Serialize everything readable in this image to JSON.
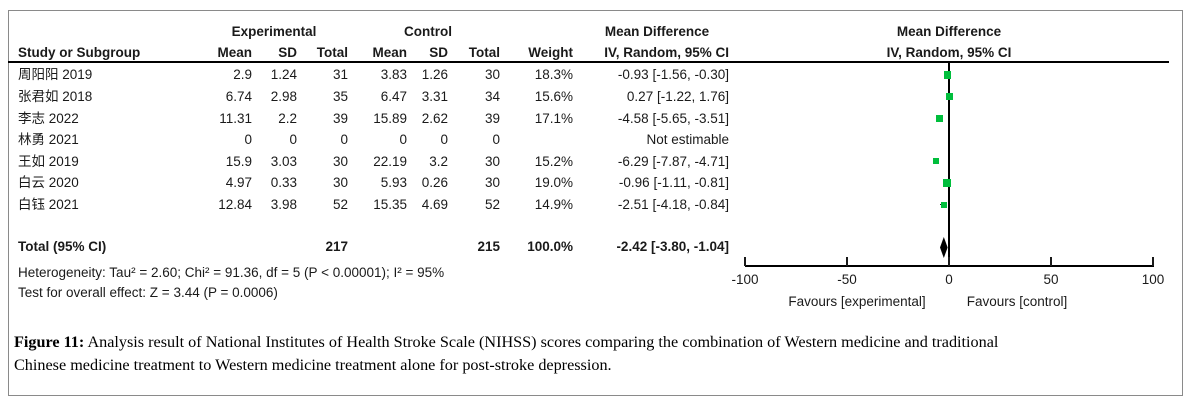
{
  "table": {
    "group_headers": {
      "experimental": "Experimental",
      "control": "Control",
      "mean_difference": "Mean Difference"
    },
    "col_headers": {
      "study": "Study or Subgroup",
      "mean": "Mean",
      "sd": "SD",
      "total": "Total",
      "weight": "Weight",
      "iv": "IV, Random, 95% CI"
    },
    "plot_header": {
      "line1": "Mean Difference",
      "line2": "IV, Random, 95% CI"
    },
    "rows": [
      {
        "study": "周阳阳 2019",
        "mean_e": "2.9",
        "sd_e": "1.24",
        "total_e": "31",
        "mean_c": "3.83",
        "sd_c": "1.26",
        "total_c": "30",
        "weight": "18.3%",
        "ci": "-0.93 [-1.56, -0.30]"
      },
      {
        "study": "张君如 2018",
        "mean_e": "6.74",
        "sd_e": "2.98",
        "total_e": "35",
        "mean_c": "6.47",
        "sd_c": "3.31",
        "total_c": "34",
        "weight": "15.6%",
        "ci": "0.27 [-1.22, 1.76]"
      },
      {
        "study": "李志 2022",
        "mean_e": "11.31",
        "sd_e": "2.2",
        "total_e": "39",
        "mean_c": "15.89",
        "sd_c": "2.62",
        "total_c": "39",
        "weight": "17.1%",
        "ci": "-4.58 [-5.65, -3.51]"
      },
      {
        "study": "林勇 2021",
        "mean_e": "0",
        "sd_e": "0",
        "total_e": "0",
        "mean_c": "0",
        "sd_c": "0",
        "total_c": "0",
        "weight": "",
        "ci": "Not estimable"
      },
      {
        "study": "王如 2019",
        "mean_e": "15.9",
        "sd_e": "3.03",
        "total_e": "30",
        "mean_c": "22.19",
        "sd_c": "3.2",
        "total_c": "30",
        "weight": "15.2%",
        "ci": "-6.29 [-7.87, -4.71]"
      },
      {
        "study": "白云 2020",
        "mean_e": "4.97",
        "sd_e": "0.33",
        "total_e": "30",
        "mean_c": "5.93",
        "sd_c": "0.26",
        "total_c": "30",
        "weight": "19.0%",
        "ci": "-0.96 [-1.11, -0.81]"
      },
      {
        "study": "白钰 2021",
        "mean_e": "12.84",
        "sd_e": "3.98",
        "total_e": "52",
        "mean_c": "15.35",
        "sd_c": "4.69",
        "total_c": "52",
        "weight": "14.9%",
        "ci": "-2.51 [-4.18, -0.84]"
      }
    ],
    "total_row": {
      "label": "Total (95% CI)",
      "total_e": "217",
      "total_c": "215",
      "weight": "100.0%",
      "ci": "-2.42 [-3.80, -1.04]"
    }
  },
  "footer": {
    "heterogeneity": "Heterogeneity: Tau² = 2.60; Chi² = 91.36, df = 5 (P < 0.00001); I² = 95%",
    "overall_effect": "Test for overall effect: Z = 3.44 (P = 0.0006)"
  },
  "axis": {
    "tick_labels": [
      "-100",
      "-50",
      "0",
      "50",
      "100"
    ],
    "favours_left": "Favours [experimental]",
    "favours_right": "Favours [control]"
  },
  "caption": {
    "label": "Figure 11:",
    "line1_rest": " Analysis result of National Institutes of Health Stroke Scale (NIHSS) scores comparing the combination of Western medicine and traditional",
    "line2": "Chinese medicine treatment to Western medicine treatment alone for post-stroke depression."
  },
  "colors": {
    "marker_green": "#00be3c",
    "diamond_black": "#000000",
    "line_black": "#1a1a1a",
    "border_gray": "#8a8a8a"
  },
  "chart_data": {
    "type": "forest",
    "effect_measure": "Mean Difference IV, Random, 95% CI",
    "x_axis": {
      "min": -100,
      "max": 100,
      "ticks": [
        -100,
        -50,
        0,
        50,
        100
      ]
    },
    "studies": [
      {
        "name": "周阳阳 2019",
        "md": -0.93,
        "ci_lo": -1.56,
        "ci_hi": -0.3,
        "weight": 18.3
      },
      {
        "name": "张君如 2018",
        "md": 0.27,
        "ci_lo": -1.22,
        "ci_hi": 1.76,
        "weight": 15.6
      },
      {
        "name": "李志 2022",
        "md": -4.58,
        "ci_lo": -5.65,
        "ci_hi": -3.51,
        "weight": 17.1
      },
      {
        "name": "林勇 2021",
        "md": null,
        "ci_lo": null,
        "ci_hi": null,
        "weight": null
      },
      {
        "name": "王如 2019",
        "md": -6.29,
        "ci_lo": -7.87,
        "ci_hi": -4.71,
        "weight": 15.2
      },
      {
        "name": "白云 2020",
        "md": -0.96,
        "ci_lo": -1.11,
        "ci_hi": -0.81,
        "weight": 19.0
      },
      {
        "name": "白钰 2021",
        "md": -2.51,
        "ci_lo": -4.18,
        "ci_hi": -0.84,
        "weight": 14.9
      }
    ],
    "total": {
      "md": -2.42,
      "ci_lo": -3.8,
      "ci_hi": -1.04
    },
    "heterogeneity": {
      "tau2": 2.6,
      "chi2": 91.36,
      "df": 5,
      "p": "< 0.00001",
      "i2": "95%"
    },
    "overall_effect": {
      "z": 3.44,
      "p": 0.0006
    }
  }
}
